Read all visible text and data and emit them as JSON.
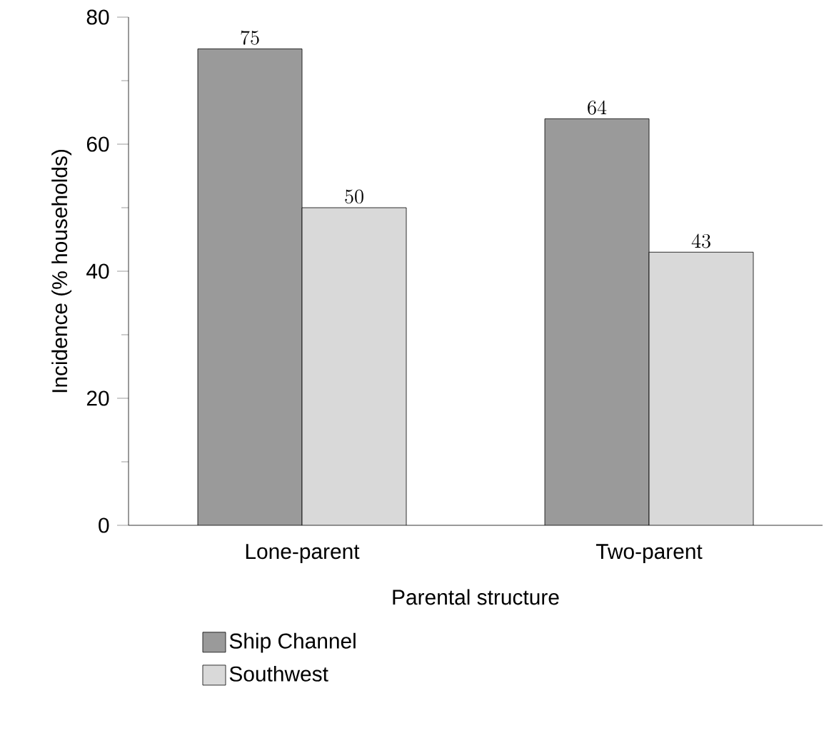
{
  "chart_data": {
    "type": "bar",
    "xlabel": "Parental structure",
    "ylabel": "Incidence (% households)",
    "categories": [
      "Lone-parent",
      "Two-parent"
    ],
    "series": [
      {
        "name": "Ship Channel",
        "color": "#9a9a9a",
        "values": [
          75,
          64
        ]
      },
      {
        "name": "Southwest",
        "color": "#d9d9d9",
        "values": [
          50,
          43
        ]
      }
    ],
    "ylim": [
      0,
      80
    ],
    "yticks": [
      0,
      20,
      40,
      60,
      80
    ],
    "data_labels": true,
    "legend": "bottom",
    "grid": false
  }
}
